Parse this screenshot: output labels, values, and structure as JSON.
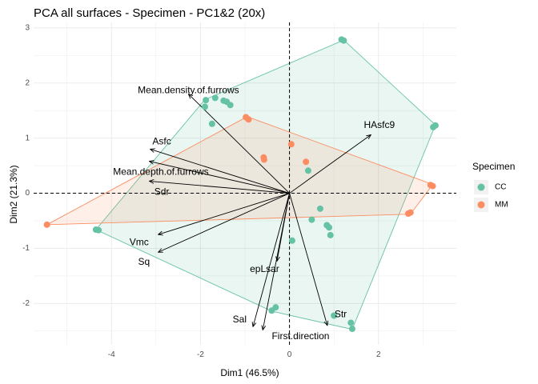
{
  "chart_data": {
    "type": "scatter",
    "title": "PCA all surfaces - Specimen - PC1&2 (20x)",
    "xlabel": "Dim1 (46.5%)",
    "ylabel": "Dim2 (21.3%)",
    "xlim": [
      -5.75,
      3.75
    ],
    "ylim": [
      -2.75,
      3.1
    ],
    "x_ticks": [
      -4,
      -2,
      0,
      2
    ],
    "y_ticks": [
      -2,
      -1,
      0,
      1,
      2,
      3
    ],
    "grid": true,
    "reference_lines": {
      "x": 0,
      "y": 0
    },
    "legend": {
      "title": "Specimen",
      "placement": "right",
      "entries": [
        {
          "label": "CC",
          "color": "#66c2a5"
        },
        {
          "label": "MM",
          "color": "#fc8d62"
        }
      ]
    },
    "series": [
      {
        "name": "CC",
        "color": "#66c2a5",
        "points": [
          [
            1.22,
            2.77
          ],
          [
            1.17,
            2.79
          ],
          [
            3.23,
            1.2
          ],
          [
            3.28,
            1.23
          ],
          [
            -1.88,
            1.69
          ],
          [
            -1.9,
            1.57
          ],
          [
            -1.67,
            1.73
          ],
          [
            -1.48,
            1.68
          ],
          [
            -1.41,
            1.66
          ],
          [
            -1.33,
            1.6
          ],
          [
            -1.74,
            1.26
          ],
          [
            0.42,
            0.41
          ],
          [
            0.69,
            -0.28
          ],
          [
            0.5,
            -0.48
          ],
          [
            0.84,
            -0.58
          ],
          [
            0.89,
            -0.62
          ],
          [
            0.92,
            -0.76
          ],
          [
            0.06,
            -0.86
          ],
          [
            -0.31,
            -2.07
          ],
          [
            -0.4,
            -2.13
          ],
          [
            1.0,
            -2.22
          ],
          [
            1.38,
            -2.35
          ],
          [
            1.41,
            -2.46
          ],
          [
            -4.35,
            -0.66
          ],
          [
            -4.29,
            -0.67
          ]
        ]
      },
      {
        "name": "MM",
        "color": "#fc8d62",
        "points": [
          [
            -5.45,
            -0.57
          ],
          [
            -0.92,
            1.34
          ],
          [
            -0.98,
            1.38
          ],
          [
            0.04,
            0.89
          ],
          [
            -0.58,
            0.65
          ],
          [
            -0.57,
            0.61
          ],
          [
            0.37,
            0.57
          ],
          [
            3.17,
            0.15
          ],
          [
            3.22,
            0.13
          ],
          [
            2.67,
            -0.37
          ],
          [
            2.72,
            -0.35
          ]
        ]
      }
    ],
    "hulls": [
      {
        "series": "CC",
        "vertices": [
          [
            1.22,
            2.78
          ],
          [
            3.28,
            1.24
          ],
          [
            1.41,
            -2.47
          ],
          [
            -0.4,
            -2.14
          ],
          [
            -4.35,
            -0.66
          ],
          [
            -1.9,
            1.7
          ]
        ]
      },
      {
        "series": "MM",
        "vertices": [
          [
            -0.95,
            1.39
          ],
          [
            3.22,
            0.16
          ],
          [
            2.72,
            -0.38
          ],
          [
            -5.45,
            -0.57
          ]
        ]
      }
    ],
    "variable_arrows": [
      {
        "name": "Mean.density.of.furrows",
        "x": -2.27,
        "y": 1.8,
        "label_x": -2.27,
        "label_y": 1.86
      },
      {
        "name": "HAsfc9",
        "x": 1.83,
        "y": 1.06,
        "label_x": 2.02,
        "label_y": 1.23
      },
      {
        "name": "Asfc",
        "x": -3.13,
        "y": 0.8,
        "label_x": -2.87,
        "label_y": 0.93
      },
      {
        "name": "Mean.depth.of.furrows",
        "x": -3.15,
        "y": 0.58,
        "label_x": -2.89,
        "label_y": 0.38
      },
      {
        "name": "Sdr",
        "x": -3.15,
        "y": 0.22,
        "label_x": -2.87,
        "label_y": 0.02
      },
      {
        "name": "Vmc",
        "x": -2.95,
        "y": -0.75,
        "label_x": -3.38,
        "label_y": -0.9
      },
      {
        "name": "Sq",
        "x": -2.95,
        "y": -1.07,
        "label_x": -3.27,
        "label_y": -1.25
      },
      {
        "name": "epLsar",
        "x": -0.28,
        "y": -1.23,
        "label_x": -0.56,
        "label_y": -1.38
      },
      {
        "name": "Sal",
        "x": -0.82,
        "y": -2.42,
        "label_x": -1.12,
        "label_y": -2.3
      },
      {
        "name": "First.direction",
        "x": -0.6,
        "y": -2.48,
        "label_x": 0.25,
        "label_y": -2.6
      },
      {
        "name": "Str",
        "x": 0.85,
        "y": -2.4,
        "label_x": 1.15,
        "label_y": -2.2
      }
    ]
  }
}
